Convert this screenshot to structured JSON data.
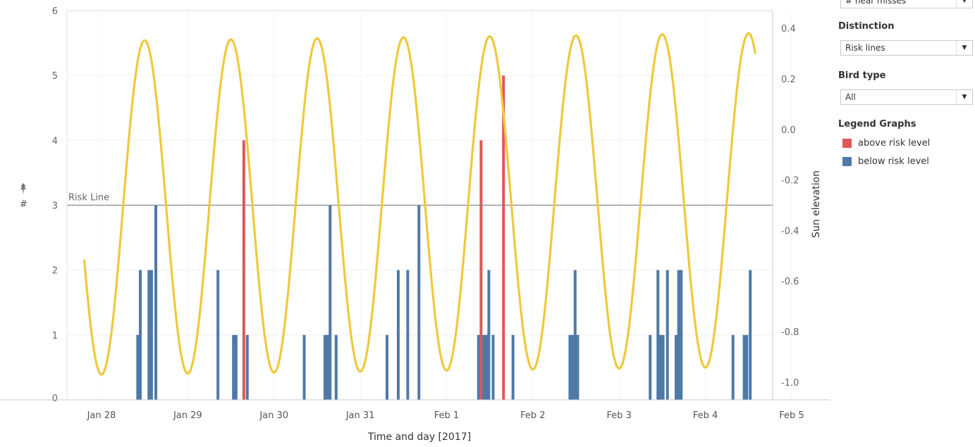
{
  "filters": {
    "measure": {
      "value": "# near misses"
    },
    "distinction": {
      "title": "Distinction",
      "value": "Risk lines"
    },
    "bird_type": {
      "title": "Bird type",
      "value": "All"
    }
  },
  "legend": {
    "title": "Legend Graphs",
    "items": [
      {
        "label": "above risk level",
        "color": "#e05759"
      },
      {
        "label": "below risk level",
        "color": "#4e79a7"
      }
    ]
  },
  "chart_data": {
    "type": "bar",
    "xlabel": "Time and day [2017]",
    "ylabel": "#",
    "y2label": "Sun elevation",
    "x_ticks": [
      "Jan 28",
      "Jan 29",
      "Jan 30",
      "Jan 31",
      "Feb 1",
      "Feb 2",
      "Feb 3",
      "Feb 4",
      "Feb 5"
    ],
    "x_range_days": [
      -0.4,
      7.78
    ],
    "ylim": [
      0,
      6
    ],
    "y_ticks": [
      0,
      1,
      2,
      3,
      4,
      5,
      6
    ],
    "y2lim": [
      -1.07,
      0.47
    ],
    "y2_ticks": [
      "0.4",
      "0.2",
      "0.0",
      "-0.2",
      "-0.4",
      "-0.6",
      "-0.8",
      "-1.0"
    ],
    "y2_tick_values": [
      0.4,
      0.2,
      0.0,
      -0.2,
      -0.4,
      -0.6,
      -0.8,
      -1.0
    ],
    "reference_line": {
      "label": "Risk Line",
      "value": 3
    },
    "bar_colors": {
      "above": "#e05759",
      "below": "#4e79a7"
    },
    "series": [
      {
        "name": "# near misses",
        "points": [
          {
            "x": 0.42,
            "y": 1,
            "risk": "below"
          },
          {
            "x": 0.45,
            "y": 2,
            "risk": "below"
          },
          {
            "x": 0.55,
            "y": 2,
            "risk": "below"
          },
          {
            "x": 0.58,
            "y": 2,
            "risk": "below"
          },
          {
            "x": 0.63,
            "y": 3,
            "risk": "below"
          },
          {
            "x": 1.35,
            "y": 2,
            "risk": "below"
          },
          {
            "x": 1.53,
            "y": 1,
            "risk": "below"
          },
          {
            "x": 1.56,
            "y": 1,
            "risk": "below"
          },
          {
            "x": 1.65,
            "y": 4,
            "risk": "above"
          },
          {
            "x": 1.69,
            "y": 1,
            "risk": "below"
          },
          {
            "x": 2.35,
            "y": 1,
            "risk": "below"
          },
          {
            "x": 2.59,
            "y": 1,
            "risk": "below"
          },
          {
            "x": 2.62,
            "y": 1,
            "risk": "below"
          },
          {
            "x": 2.65,
            "y": 3,
            "risk": "below"
          },
          {
            "x": 2.72,
            "y": 1,
            "risk": "below"
          },
          {
            "x": 3.31,
            "y": 1,
            "risk": "below"
          },
          {
            "x": 3.44,
            "y": 2,
            "risk": "below"
          },
          {
            "x": 3.55,
            "y": 2,
            "risk": "below"
          },
          {
            "x": 3.68,
            "y": 3,
            "risk": "below"
          },
          {
            "x": 4.37,
            "y": 1,
            "risk": "below"
          },
          {
            "x": 4.4,
            "y": 4,
            "risk": "above"
          },
          {
            "x": 4.43,
            "y": 1,
            "risk": "below"
          },
          {
            "x": 4.46,
            "y": 1,
            "risk": "below"
          },
          {
            "x": 4.49,
            "y": 2,
            "risk": "below"
          },
          {
            "x": 4.54,
            "y": 1,
            "risk": "below"
          },
          {
            "x": 4.66,
            "y": 5,
            "risk": "above"
          },
          {
            "x": 4.77,
            "y": 1,
            "risk": "below"
          },
          {
            "x": 5.43,
            "y": 1,
            "risk": "below"
          },
          {
            "x": 5.46,
            "y": 1,
            "risk": "below"
          },
          {
            "x": 5.49,
            "y": 2,
            "risk": "below"
          },
          {
            "x": 5.52,
            "y": 1,
            "risk": "below"
          },
          {
            "x": 6.36,
            "y": 1,
            "risk": "below"
          },
          {
            "x": 6.45,
            "y": 2,
            "risk": "below"
          },
          {
            "x": 6.48,
            "y": 1,
            "risk": "below"
          },
          {
            "x": 6.51,
            "y": 1,
            "risk": "below"
          },
          {
            "x": 6.56,
            "y": 2,
            "risk": "below"
          },
          {
            "x": 6.66,
            "y": 1,
            "risk": "below"
          },
          {
            "x": 6.69,
            "y": 2,
            "risk": "below"
          },
          {
            "x": 6.72,
            "y": 2,
            "risk": "below"
          },
          {
            "x": 7.32,
            "y": 1,
            "risk": "below"
          },
          {
            "x": 7.45,
            "y": 1,
            "risk": "below"
          },
          {
            "x": 7.48,
            "y": 1,
            "risk": "below"
          },
          {
            "x": 7.52,
            "y": 2,
            "risk": "below"
          }
        ]
      },
      {
        "name": "Sun elevation",
        "type": "line",
        "axis": "right",
        "color": "#efc93b",
        "x_start": -0.2,
        "x_end": 7.58,
        "shape": {
          "noon_x": 0.5,
          "period_days": 1,
          "center": -0.31,
          "amplitude": 0.66,
          "peak_increase_per_day": 0.004
        }
      }
    ]
  }
}
